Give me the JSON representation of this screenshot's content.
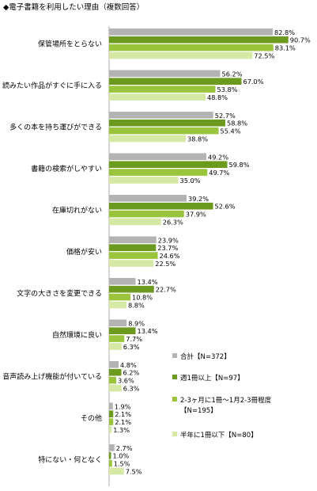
{
  "chart_data": {
    "type": "bar",
    "orientation": "horizontal",
    "title": "◆電子書籍を利用したい理由（複数回答）",
    "categories": [
      "保管場所をとらない",
      "読みたい作品がすぐに手に入る",
      "多くの本を持ち運びができる",
      "書籍の検索がしやすい",
      "在庫切れがない",
      "価格が安い",
      "文字の大きさを変更できる",
      "自然環境に良い",
      "音声読み上げ機能が付いている",
      "その他",
      "特にない・何となく"
    ],
    "series": [
      {
        "name": "合計【N=372】",
        "color": "#b3b3b3",
        "values": [
          82.8,
          56.2,
          52.7,
          49.2,
          39.2,
          23.9,
          13.4,
          8.9,
          4.8,
          1.9,
          2.7
        ]
      },
      {
        "name": "週1冊以上【N=97】",
        "color": "#6b9a1e",
        "values": [
          90.7,
          67.0,
          58.8,
          59.8,
          52.6,
          23.7,
          22.7,
          13.4,
          6.2,
          2.1,
          1.0
        ]
      },
      {
        "name": "2-3ヶ月に1冊～1月2-3冊程度【N=195】",
        "color": "#9ac43c",
        "values": [
          83.1,
          53.8,
          55.4,
          49.7,
          37.9,
          24.6,
          10.8,
          7.7,
          3.6,
          2.1,
          1.5
        ]
      },
      {
        "name": "半年に1冊以下【N=80】",
        "color": "#d6e9a4",
        "values": [
          72.5,
          48.8,
          38.8,
          35.0,
          26.3,
          22.5,
          8.8,
          6.3,
          6.3,
          1.3,
          7.5
        ]
      }
    ],
    "value_suffix": "%",
    "xlim": [
      0,
      100
    ],
    "grid": false,
    "legend_position": "right"
  }
}
